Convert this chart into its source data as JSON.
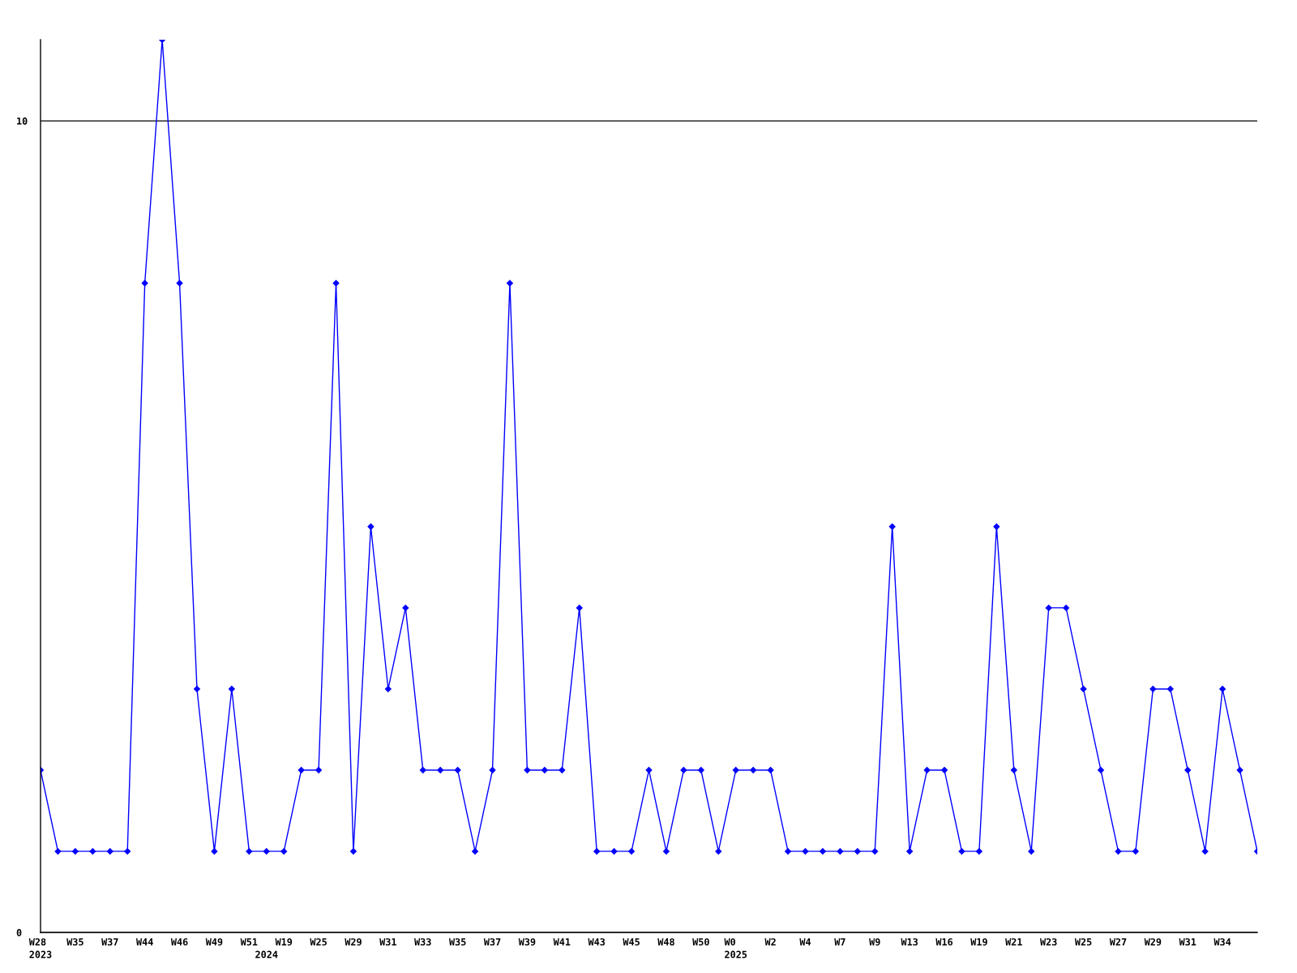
{
  "chart_data": {
    "type": "line",
    "categories": [
      "W28\n2023",
      null,
      "W35",
      null,
      "W37",
      null,
      "W44",
      null,
      "W46",
      null,
      "W49",
      null,
      "W51",
      "\n2024",
      "W19",
      null,
      "W25",
      null,
      "W29",
      null,
      "W31",
      null,
      "W33",
      null,
      "W35",
      null,
      "W37",
      null,
      "W39",
      null,
      "W41",
      null,
      "W43",
      null,
      "W45",
      null,
      "W48",
      null,
      "W50",
      null,
      "W0\n2025",
      null,
      "W2",
      null,
      "W4",
      null,
      "W7",
      null,
      "W9",
      null,
      "W13",
      null,
      "W16",
      null,
      "W19",
      null,
      "W21",
      null,
      "W23",
      null,
      "W25",
      null,
      "W27",
      null,
      "W29",
      null,
      "W31",
      null,
      "W34",
      null,
      null
    ],
    "values": [
      2,
      1,
      1,
      1,
      1,
      1,
      8,
      11,
      8,
      3,
      1,
      3,
      1,
      1,
      1,
      2,
      2,
      8,
      1,
      5,
      3,
      4,
      2,
      2,
      2,
      1,
      2,
      8,
      2,
      2,
      2,
      4,
      1,
      1,
      1,
      2,
      1,
      2,
      2,
      1,
      2,
      2,
      2,
      1,
      1,
      1,
      1,
      1,
      1,
      5,
      1,
      2,
      2,
      1,
      1,
      5,
      2,
      1,
      4,
      4,
      3,
      2,
      1,
      1,
      3,
      3,
      2,
      1,
      3,
      2,
      1
    ],
    "color": "#0000ff",
    "ylim": [
      0,
      11
    ],
    "yticks": [
      0,
      10
    ],
    "grid": "y",
    "marker": "diamond",
    "line_style": "solid"
  }
}
